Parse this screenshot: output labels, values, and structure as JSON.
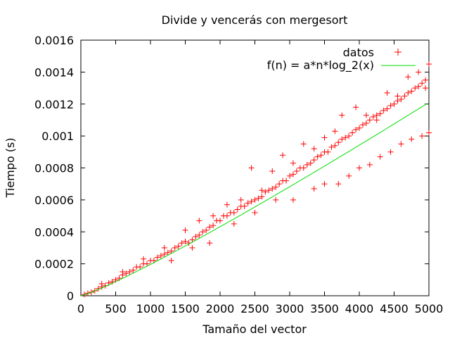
{
  "chart_data": {
    "type": "scatter",
    "title": "Divide y vencerás con mergesort",
    "xlabel": "Tamaño del vector",
    "ylabel": "Tiempo (s)",
    "xlim": [
      0,
      5000
    ],
    "ylim": [
      0,
      0.0016
    ],
    "x_ticks": [
      "0",
      "500",
      "1000",
      "1500",
      "2000",
      "2500",
      "3000",
      "3500",
      "4000",
      "4500",
      "5000"
    ],
    "y_ticks": [
      "0",
      "0.0002",
      "0.0004",
      "0.0006",
      "0.0008",
      "0.001",
      "0.0012",
      "0.0014",
      "0.0016"
    ],
    "grid": false,
    "legend_position": "top-right",
    "series": [
      {
        "name": "datos",
        "type": "scatter",
        "marker": "+",
        "color": "#ff0000",
        "points": [
          [
            50,
            8e-06
          ],
          [
            100,
            1.6e-05
          ],
          [
            150,
            2.2e-05
          ],
          [
            200,
            3.1e-05
          ],
          [
            250,
            4.5e-05
          ],
          [
            300,
            5.5e-05
          ],
          [
            350,
            6.3e-05
          ],
          [
            400,
            8e-05
          ],
          [
            450,
            8.8e-05
          ],
          [
            500,
            0.0001
          ],
          [
            550,
            0.00011
          ],
          [
            600,
            0.00013
          ],
          [
            650,
            0.00014
          ],
          [
            700,
            0.00015
          ],
          [
            750,
            0.00016
          ],
          [
            800,
            0.00018
          ],
          [
            850,
            0.00018
          ],
          [
            900,
            0.0002
          ],
          [
            950,
            0.0002
          ],
          [
            1000,
            0.00022
          ],
          [
            1050,
            0.00022
          ],
          [
            1100,
            0.00024
          ],
          [
            1150,
            0.00025
          ],
          [
            1200,
            0.00026
          ],
          [
            1250,
            0.00027
          ],
          [
            1300,
            0.00028
          ],
          [
            1350,
            0.0003
          ],
          [
            1400,
            0.00031
          ],
          [
            1450,
            0.00033
          ],
          [
            1500,
            0.00034
          ],
          [
            1550,
            0.00033
          ],
          [
            1600,
            0.00035
          ],
          [
            1650,
            0.00037
          ],
          [
            1700,
            0.00038
          ],
          [
            1750,
            0.0004
          ],
          [
            1800,
            0.00041
          ],
          [
            1850,
            0.00043
          ],
          [
            1900,
            0.00044
          ],
          [
            1950,
            0.00047
          ],
          [
            2000,
            0.00047
          ],
          [
            2050,
            0.0005
          ],
          [
            2100,
            0.0005
          ],
          [
            2150,
            0.00052
          ],
          [
            2200,
            0.00052
          ],
          [
            2250,
            0.00054
          ],
          [
            2300,
            0.00056
          ],
          [
            2350,
            0.00056
          ],
          [
            2400,
            0.00058
          ],
          [
            2450,
            0.00059
          ],
          [
            2500,
            0.0006
          ],
          [
            2550,
            0.00061
          ],
          [
            2600,
            0.00062
          ],
          [
            2650,
            0.00065
          ],
          [
            2700,
            0.00066
          ],
          [
            2750,
            0.00067
          ],
          [
            2800,
            0.00068
          ],
          [
            2850,
            0.0007
          ],
          [
            2900,
            0.00072
          ],
          [
            2950,
            0.00072
          ],
          [
            3000,
            0.00075
          ],
          [
            3050,
            0.00076
          ],
          [
            3100,
            0.00078
          ],
          [
            3150,
            0.0008
          ],
          [
            3200,
            0.0008
          ],
          [
            3250,
            0.00082
          ],
          [
            3300,
            0.00083
          ],
          [
            3350,
            0.00085
          ],
          [
            3400,
            0.00087
          ],
          [
            3450,
            0.00088
          ],
          [
            3500,
            0.0009
          ],
          [
            3550,
            0.0009
          ],
          [
            3600,
            0.00093
          ],
          [
            3650,
            0.00094
          ],
          [
            3700,
            0.00096
          ],
          [
            3750,
            0.00098
          ],
          [
            3800,
            0.00099
          ],
          [
            3850,
            0.001
          ],
          [
            3900,
            0.00102
          ],
          [
            3950,
            0.00104
          ],
          [
            4000,
            0.00105
          ],
          [
            4050,
            0.00107
          ],
          [
            4100,
            0.00108
          ],
          [
            4150,
            0.0011
          ],
          [
            4200,
            0.00112
          ],
          [
            4250,
            0.00113
          ],
          [
            4300,
            0.00114
          ],
          [
            4350,
            0.00116
          ],
          [
            4400,
            0.00117
          ],
          [
            4450,
            0.00119
          ],
          [
            4500,
            0.0012
          ],
          [
            4550,
            0.00122
          ],
          [
            4600,
            0.00123
          ],
          [
            4650,
            0.00125
          ],
          [
            4700,
            0.00127
          ],
          [
            4750,
            0.00128
          ],
          [
            4800,
            0.0013
          ],
          [
            4850,
            0.00131
          ],
          [
            4900,
            0.00133
          ],
          [
            4950,
            0.00135
          ],
          [
            5000,
            0.00145
          ],
          [
            300,
            7.5e-05
          ],
          [
            600,
            0.00015
          ],
          [
            900,
            0.00023
          ],
          [
            1200,
            0.0003
          ],
          [
            1500,
            0.00041
          ],
          [
            1700,
            0.00047
          ],
          [
            1900,
            0.0005
          ],
          [
            2100,
            0.00057
          ],
          [
            2300,
            0.0006
          ],
          [
            2450,
            0.0008
          ],
          [
            2600,
            0.00066
          ],
          [
            2750,
            0.00078
          ],
          [
            2900,
            0.00088
          ],
          [
            3050,
            0.00083
          ],
          [
            3200,
            0.00095
          ],
          [
            3350,
            0.00092
          ],
          [
            3500,
            0.00099
          ],
          [
            3650,
            0.00103
          ],
          [
            3750,
            0.00113
          ],
          [
            3950,
            0.00118
          ],
          [
            4100,
            0.00113
          ],
          [
            4250,
            0.0011
          ],
          [
            4400,
            0.00127
          ],
          [
            4550,
            0.00125
          ],
          [
            4700,
            0.00137
          ],
          [
            4850,
            0.0014
          ],
          [
            4950,
            0.0013
          ],
          [
            1300,
            0.00022
          ],
          [
            1600,
            0.0003
          ],
          [
            1850,
            0.00033
          ],
          [
            2200,
            0.00045
          ],
          [
            2500,
            0.00052
          ],
          [
            2800,
            0.0006
          ],
          [
            3050,
            0.0006
          ],
          [
            3350,
            0.00067
          ],
          [
            3500,
            0.0007
          ],
          [
            3700,
            0.0007
          ],
          [
            3850,
            0.00075
          ],
          [
            4000,
            0.0008
          ],
          [
            4150,
            0.00082
          ],
          [
            4300,
            0.00087
          ],
          [
            4450,
            0.0009
          ],
          [
            4600,
            0.00095
          ],
          [
            4750,
            0.00098
          ],
          [
            4900,
            0.001
          ],
          [
            5000,
            0.00102
          ]
        ]
      },
      {
        "name": "f(n) = a*n*log_2(x)",
        "type": "line",
        "color": "#00dd00",
        "function": "n*log2(n)",
        "x": [
          0,
          5000
        ],
        "y": [
          0,
          0.00121
        ]
      }
    ]
  }
}
